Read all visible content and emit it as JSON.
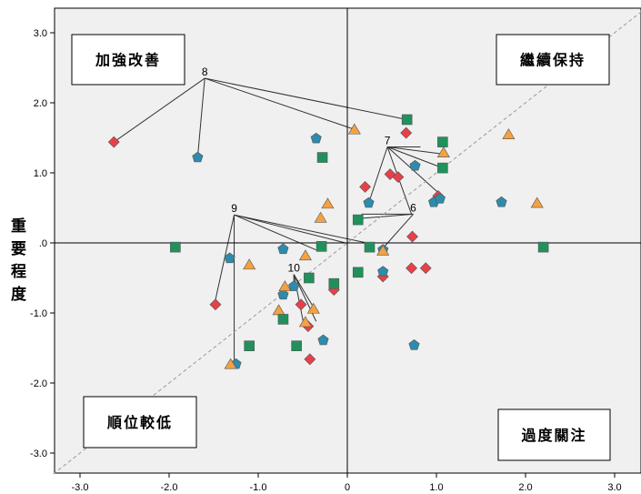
{
  "chart_data": {
    "type": "scatter",
    "ylabel": "重要程度",
    "xlim": [
      -3.3,
      3.3
    ],
    "ylim": [
      -3.3,
      3.3
    ],
    "x_ticks": [
      "-3.0",
      "-2.0",
      "-1.0",
      "0",
      "1.0",
      "2.0",
      "3.0"
    ],
    "y_ticks": [
      "3.0",
      "2.0",
      "1.0",
      ".0",
      "-1.0",
      "-2.0",
      "-3.0"
    ],
    "quadrant_labels": {
      "top_left": "加強改善",
      "top_right": "繼續保持",
      "bottom_left": "順位較低",
      "bottom_right": "過度關注"
    },
    "callouts": [
      {
        "label": "8",
        "anchor": [
          -1.6,
          2.35
        ],
        "targets": [
          [
            -2.62,
            1.44
          ],
          [
            -1.68,
            1.22
          ],
          [
            0.08,
            1.62
          ],
          [
            0.67,
            1.76
          ]
        ]
      },
      {
        "label": "7",
        "anchor": [
          0.45,
          1.37
        ],
        "targets": [
          [
            0.24,
            0.57
          ],
          [
            0.82,
            1.37
          ],
          [
            1.07,
            1.27
          ],
          [
            1.07,
            1.07
          ],
          [
            1.07,
            0.66
          ],
          [
            0.72,
            0.41
          ]
        ]
      },
      {
        "label": "6",
        "anchor": [
          0.74,
          0.41
        ],
        "targets": [
          [
            0.16,
            0.41
          ],
          [
            0.16,
            0.35
          ],
          [
            0.41,
            -0.06
          ]
        ]
      },
      {
        "label": "9",
        "anchor": [
          -1.27,
          0.4
        ],
        "targets": [
          [
            -1.49,
            -0.87
          ],
          [
            -1.27,
            -1.73
          ],
          [
            -0.35,
            -0.1
          ],
          [
            -0.02,
            0.0
          ],
          [
            0.22,
            0.0
          ]
        ]
      },
      {
        "label": "10",
        "anchor": [
          -0.6,
          -0.45
        ],
        "targets": [
          [
            -0.6,
            -0.62
          ],
          [
            -0.37,
            -0.94
          ],
          [
            -0.35,
            -1.12
          ],
          [
            -0.48,
            -1.22
          ]
        ]
      }
    ],
    "series": [
      {
        "marker": "diamond",
        "color": "#e8404a",
        "points": [
          [
            -2.62,
            1.44
          ],
          [
            0.66,
            1.57
          ],
          [
            0.2,
            0.8
          ],
          [
            0.48,
            0.98
          ],
          [
            0.57,
            0.94
          ],
          [
            1.02,
            0.67
          ],
          [
            -1.48,
            -0.88
          ],
          [
            -0.52,
            -0.88
          ],
          [
            -0.44,
            -1.19
          ],
          [
            -0.42,
            -1.66
          ],
          [
            -0.15,
            -0.67
          ],
          [
            0.4,
            -0.48
          ],
          [
            0.73,
            0.09
          ],
          [
            0.72,
            -0.36
          ],
          [
            0.88,
            -0.36
          ]
        ]
      },
      {
        "marker": "pentagon",
        "color": "#2e8bab",
        "points": [
          [
            -1.68,
            1.22
          ],
          [
            -0.35,
            1.49
          ],
          [
            0.76,
            1.1
          ],
          [
            0.24,
            0.57
          ],
          [
            0.97,
            0.58
          ],
          [
            1.04,
            0.63
          ],
          [
            1.73,
            0.58
          ],
          [
            -1.32,
            -0.22
          ],
          [
            -0.72,
            -0.09
          ],
          [
            0.4,
            -0.1
          ],
          [
            0.4,
            -0.41
          ],
          [
            -0.72,
            -0.74
          ],
          [
            -0.6,
            -0.62
          ],
          [
            -0.27,
            -1.39
          ],
          [
            0.75,
            -1.46
          ],
          [
            -1.25,
            -1.73
          ]
        ]
      },
      {
        "marker": "triangle",
        "color": "#f4a142",
        "points": [
          0.0,
          0.0
        ],
        "points_list": [
          [
            0.08,
            1.62
          ],
          [
            1.08,
            1.29
          ],
          [
            1.81,
            1.55
          ],
          [
            2.13,
            0.57
          ],
          [
            -0.22,
            0.56
          ],
          [
            -0.3,
            0.36
          ],
          [
            0.4,
            -0.11
          ],
          [
            -0.47,
            -0.18
          ],
          [
            -1.1,
            -0.31
          ],
          [
            -0.7,
            -0.62
          ],
          [
            -0.77,
            -0.96
          ],
          [
            -0.38,
            -0.94
          ],
          [
            -0.47,
            -1.13
          ],
          [
            -1.31,
            -1.73
          ]
        ]
      },
      {
        "marker": "square",
        "color": "#21915b",
        "points": [
          [
            0.67,
            1.76
          ],
          [
            1.07,
            1.44
          ],
          [
            1.07,
            1.07
          ],
          [
            -0.28,
            1.22
          ],
          [
            0.12,
            0.33
          ],
          [
            0.25,
            -0.06
          ],
          [
            -0.29,
            -0.05
          ],
          [
            -1.93,
            -0.06
          ],
          [
            2.2,
            -0.06
          ],
          [
            -0.43,
            -0.5
          ],
          [
            0.12,
            -0.42
          ],
          [
            -0.15,
            -0.58
          ],
          [
            -0.72,
            -1.09
          ],
          [
            -1.1,
            -1.47
          ],
          [
            -0.57,
            -1.47
          ]
        ]
      }
    ]
  }
}
